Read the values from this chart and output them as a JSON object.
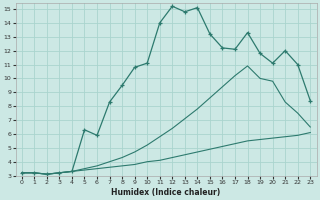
{
  "xlabel": "Humidex (Indice chaleur)",
  "bg_color": "#cce8e4",
  "line_color": "#2d7a6e",
  "grid_color": "#aad4ce",
  "xlim": [
    -0.5,
    23.5
  ],
  "ylim": [
    3,
    15.4
  ],
  "xticks": [
    0,
    1,
    2,
    3,
    4,
    5,
    6,
    7,
    8,
    9,
    10,
    11,
    12,
    13,
    14,
    15,
    16,
    17,
    18,
    19,
    20,
    21,
    22,
    23
  ],
  "yticks": [
    3,
    4,
    5,
    6,
    7,
    8,
    9,
    10,
    11,
    12,
    13,
    14,
    15
  ],
  "series": [
    {
      "x": [
        0,
        1,
        2,
        3,
        4,
        5,
        6,
        7,
        8,
        9,
        10,
        11,
        12,
        13,
        14,
        15,
        16,
        17,
        18,
        19,
        20,
        21,
        22,
        23
      ],
      "y": [
        3.2,
        3.2,
        3.1,
        3.2,
        3.3,
        3.4,
        3.5,
        3.6,
        3.7,
        3.8,
        4.0,
        4.1,
        4.3,
        4.5,
        4.7,
        4.9,
        5.1,
        5.3,
        5.5,
        5.6,
        5.7,
        5.8,
        5.9,
        6.1
      ],
      "marker": false,
      "linewidth": 0.8
    },
    {
      "x": [
        0,
        1,
        2,
        3,
        4,
        5,
        6,
        7,
        8,
        9,
        10,
        11,
        12,
        13,
        14,
        15,
        16,
        17,
        18,
        19,
        20,
        21,
        22,
        23
      ],
      "y": [
        3.2,
        3.2,
        3.1,
        3.2,
        3.3,
        3.5,
        3.7,
        4.0,
        4.3,
        4.7,
        5.2,
        5.8,
        6.4,
        7.1,
        7.8,
        8.6,
        9.4,
        10.2,
        10.9,
        10.0,
        9.8,
        8.3,
        7.5,
        6.5
      ],
      "marker": false,
      "linewidth": 0.8
    },
    {
      "x": [
        0,
        1,
        2,
        3,
        4,
        5,
        6,
        7,
        8,
        9,
        10,
        11,
        12,
        13,
        14,
        15,
        16,
        17,
        18,
        19,
        20,
        21,
        22,
        23
      ],
      "y": [
        3.2,
        3.2,
        3.1,
        3.2,
        3.3,
        6.3,
        5.9,
        8.3,
        9.5,
        10.8,
        11.1,
        14.0,
        15.2,
        14.8,
        15.1,
        13.2,
        12.2,
        12.1,
        13.3,
        11.8,
        11.1,
        12.0,
        11.0,
        8.4
      ],
      "marker": true,
      "linewidth": 0.9
    }
  ]
}
